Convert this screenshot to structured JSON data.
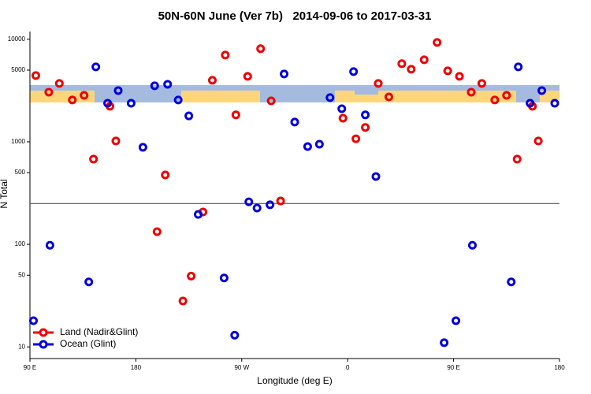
{
  "chart_data": {
    "type": "scatter",
    "title": "50N-60N June (Ver 7b)   2014-09-06 to 2017-03-31",
    "x_label": "Longitude (deg E)",
    "y_label": "N Total",
    "xlim": [
      90,
      540
    ],
    "ylim": [
      7.7,
      11900
    ],
    "y_scale": "log",
    "xticks": [
      {
        "value": 90,
        "label": "90 E"
      },
      180,
      {
        "value": 270,
        "label": "90 W"
      },
      {
        "value": 360,
        "label": "0"
      },
      {
        "value": 450,
        "label": "90 E"
      },
      {
        "value": 540,
        "label": "180"
      }
    ],
    "yticks": [
      10,
      50,
      100,
      500,
      1000,
      5000,
      10000
    ],
    "hline": 250,
    "legend": "bottom-left",
    "series": [
      {
        "name": "Land (Nadir&Glint)",
        "color": "#ee0000",
        "x": [
          95,
          106,
          115,
          126,
          136,
          144,
          158,
          163,
          198,
          205,
          220,
          227,
          237,
          245,
          256,
          265,
          275,
          286,
          295,
          303,
          356,
          367,
          375,
          386,
          395,
          406,
          414,
          425,
          436,
          445,
          455,
          465,
          474,
          485,
          495,
          504,
          517,
          522
        ],
        "values": [
          4430,
          3050,
          3710,
          2560,
          2840,
          678,
          2220,
          1020,
          133,
          475,
          28,
          49,
          207,
          3980,
          7020,
          1830,
          4350,
          8090,
          2510,
          265,
          1700,
          1070,
          1380,
          3710,
          2740,
          5780,
          5100,
          6310,
          9310,
          4920,
          4350,
          3050,
          3710,
          2560,
          2840,
          678,
          2220,
          1020
        ]
      },
      {
        "name": "Ocean (Glint)",
        "color": "#0000dd",
        "x": [
          93,
          107,
          140,
          146,
          156,
          165,
          176,
          186,
          196,
          207,
          216,
          225,
          233,
          255,
          264,
          276,
          283,
          294,
          306,
          315,
          326,
          336,
          345,
          355,
          365,
          375,
          384,
          442,
          452,
          466,
          499,
          505,
          515,
          525,
          536
        ],
        "values": [
          18,
          98,
          43,
          5380,
          2380,
          3160,
          2380,
          884,
          3520,
          3640,
          2560,
          1790,
          196,
          47,
          13,
          260,
          226,
          243,
          4590,
          1560,
          899,
          948,
          2700,
          2100,
          4840,
          1830,
          459,
          11,
          18,
          98,
          43,
          5380,
          2380,
          3160,
          2380
        ]
      }
    ]
  }
}
